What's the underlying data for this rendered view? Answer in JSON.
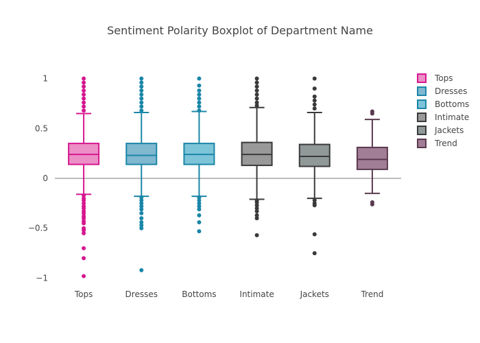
{
  "chart_data": {
    "type": "box",
    "title": "Sentiment Polarity Boxplot of Department Name",
    "xlabel": "",
    "ylabel": "",
    "ylim": [
      -1.1,
      1.1
    ],
    "yticks": [
      -1,
      -0.5,
      0,
      0.5,
      1
    ],
    "ytick_labels": [
      "−1",
      "−0.5",
      "0",
      "0.5",
      "1"
    ],
    "zeroline": true,
    "grid": false,
    "legend_position": "right",
    "categories": [
      "Tops",
      "Dresses",
      "Bottoms",
      "Intimate",
      "Jackets",
      "Trend"
    ],
    "series": [
      {
        "name": "Tops",
        "color": "#d6178f",
        "fill": "#ec8fc6",
        "whisker_low": -0.16,
        "q1": 0.14,
        "median": 0.24,
        "q3": 0.35,
        "whisker_high": 0.65,
        "outliers": [
          -0.17,
          -0.2,
          -0.22,
          -0.25,
          -0.28,
          -0.3,
          -0.33,
          -0.35,
          -0.38,
          -0.4,
          -0.43,
          -0.45,
          -0.5,
          -0.52,
          -0.55,
          -0.7,
          -0.8,
          -0.98,
          0.68,
          0.72,
          0.76,
          0.8,
          0.84,
          0.88,
          0.92,
          0.96,
          1.0
        ]
      },
      {
        "name": "Dresses",
        "color": "#1a86a8",
        "fill": "#80b8d0",
        "whisker_low": -0.18,
        "q1": 0.14,
        "median": 0.23,
        "q3": 0.35,
        "whisker_high": 0.66,
        "outliers": [
          -0.19,
          -0.22,
          -0.25,
          -0.28,
          -0.31,
          -0.35,
          -0.4,
          -0.44,
          -0.47,
          -0.5,
          -0.92,
          0.68,
          0.72,
          0.76,
          0.8,
          0.84,
          0.88,
          0.92,
          0.96,
          1.0
        ]
      },
      {
        "name": "Bottoms",
        "color": "#1a86a8",
        "fill": "#7ec4d8",
        "whisker_low": -0.18,
        "q1": 0.14,
        "median": 0.24,
        "q3": 0.35,
        "whisker_high": 0.67,
        "outliers": [
          -0.19,
          -0.22,
          -0.25,
          -0.28,
          -0.31,
          -0.37,
          -0.44,
          -0.53,
          0.68,
          0.72,
          0.76,
          0.8,
          0.84,
          0.88,
          0.93,
          1.0
        ]
      },
      {
        "name": "Intimate",
        "color": "#3a3a3a",
        "fill": "#999999",
        "whisker_low": -0.21,
        "q1": 0.13,
        "median": 0.24,
        "q3": 0.36,
        "whisker_high": 0.71,
        "outliers": [
          -0.22,
          -0.24,
          -0.27,
          -0.3,
          -0.33,
          -0.37,
          -0.4,
          -0.57,
          0.73,
          0.76,
          0.8,
          0.84,
          0.88,
          0.92,
          0.96,
          1.0
        ]
      },
      {
        "name": "Jackets",
        "color": "#3a3a3a",
        "fill": "#909898",
        "whisker_low": -0.2,
        "q1": 0.12,
        "median": 0.22,
        "q3": 0.34,
        "whisker_high": 0.66,
        "outliers": [
          -0.22,
          -0.25,
          -0.27,
          -0.56,
          -0.75,
          0.7,
          0.74,
          0.78,
          0.82,
          0.9,
          1.0
        ]
      },
      {
        "name": "Trend",
        "color": "#5a3a4e",
        "fill": "#a27e96",
        "whisker_low": -0.15,
        "q1": 0.09,
        "median": 0.19,
        "q3": 0.31,
        "whisker_high": 0.59,
        "outliers": [
          -0.24,
          -0.26,
          0.65,
          0.67
        ]
      }
    ]
  }
}
